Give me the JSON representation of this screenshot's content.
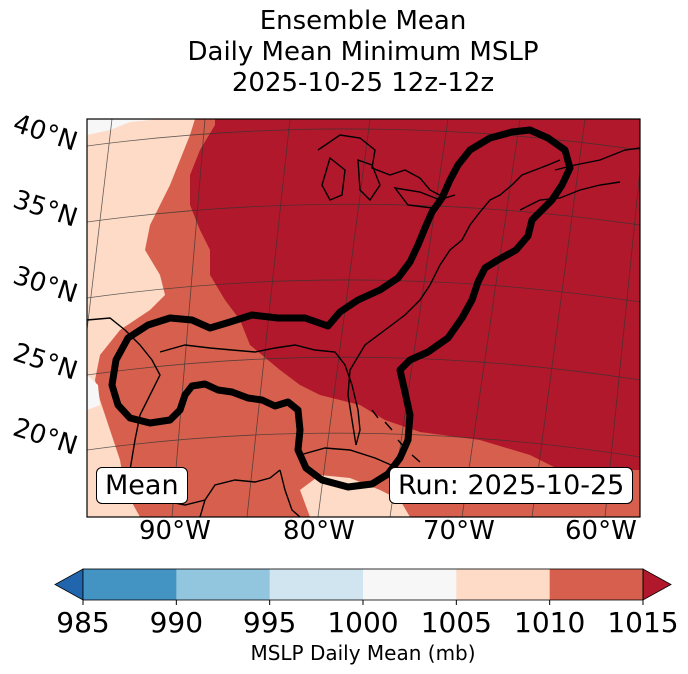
{
  "title": {
    "line1": "Ensemble Mean",
    "line2": "Daily Mean Minimum MSLP",
    "line3": "2025-10-25 12z-12z"
  },
  "map": {
    "lat_labels": [
      "40°N",
      "35°N",
      "30°N",
      "25°N",
      "20°N"
    ],
    "lon_labels": [
      "90°W",
      "80°W",
      "70°W",
      "60°W"
    ],
    "mean_label": "Mean",
    "run_label": "Run: 2025-10-25",
    "fill_colors": {
      "1015": "#b2182b",
      "1010": "#d6604d",
      "1005": "#fddbc7",
      "1000": "#f7f7f7"
    }
  },
  "colorbar": {
    "label": "MSLP Daily Mean (mb)",
    "ticks": [
      "985",
      "990",
      "995",
      "1000",
      "1005",
      "1010",
      "1015"
    ],
    "colors": [
      "#4393c3",
      "#92c5de",
      "#d1e5f0",
      "#f7f7f7",
      "#fddbc7",
      "#d6604d"
    ],
    "under_color": "#2166ac",
    "over_color": "#b2182b"
  }
}
